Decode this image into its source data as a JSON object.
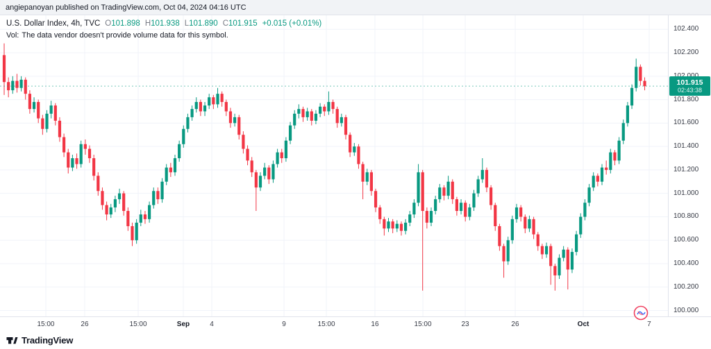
{
  "publish_bar": {
    "text": "angiepanoyan published on TradingView.com, Oct 04, 2024 04:16 UTC"
  },
  "header": {
    "symbol": "U.S. Dollar Index, 4h, TVC",
    "o_label": "O",
    "o_value": "101.898",
    "h_label": "H",
    "h_value": "101.938",
    "l_label": "L",
    "l_value": "101.890",
    "c_label": "C",
    "c_value": "101.915",
    "change": "+0.015 (+0.01%)",
    "vol_label": "Vol:",
    "vol_message": "The data vendor doesn't provide volume data for this symbol."
  },
  "price_badge": {
    "price": "101.915",
    "countdown": "02:43:38"
  },
  "colors": {
    "up": "#089981",
    "down": "#f23645",
    "grid": "#f0f3fa",
    "badge": "#089981",
    "axis_text": "#363a45"
  },
  "y_axis": {
    "labels": [
      "102.400",
      "102.200",
      "102.000",
      "101.800",
      "101.600",
      "101.400",
      "101.200",
      "101.000",
      "100.800",
      "100.600",
      "100.400",
      "100.200",
      "100.000"
    ]
  },
  "x_axis": {
    "labels": [
      {
        "text": "15:00",
        "pos": 0.0686,
        "bold": false
      },
      {
        "text": "26",
        "pos": 0.1268,
        "bold": false
      },
      {
        "text": "15:00",
        "pos": 0.2069,
        "bold": false
      },
      {
        "text": "Sep",
        "pos": 0.2744,
        "bold": true
      },
      {
        "text": "4",
        "pos": 0.3171,
        "bold": false
      },
      {
        "text": "9",
        "pos": 0.4252,
        "bold": false
      },
      {
        "text": "15:00",
        "pos": 0.4886,
        "bold": false
      },
      {
        "text": "16",
        "pos": 0.5613,
        "bold": false
      },
      {
        "text": "15:00",
        "pos": 0.6331,
        "bold": false
      },
      {
        "text": "23",
        "pos": 0.6965,
        "bold": false
      },
      {
        "text": "26",
        "pos": 0.7713,
        "bold": false
      },
      {
        "text": "Oct",
        "pos": 0.8732,
        "bold": true
      },
      {
        "text": "7",
        "pos": 0.9719,
        "bold": false
      }
    ]
  },
  "footer": {
    "brand": "TradingView"
  },
  "chart_data": {
    "type": "candlestick",
    "title": "U.S. Dollar Index",
    "timeframe": "4h",
    "exchange": "TVC",
    "last_price": 101.915,
    "ylim": [
      99.95,
      102.52
    ],
    "grid": true,
    "candles": [
      [
        102.18,
        102.28,
        101.84,
        101.95
      ],
      [
        101.95,
        101.99,
        101.82,
        101.88
      ],
      [
        101.88,
        102.0,
        101.85,
        101.96
      ],
      [
        101.96,
        102.02,
        101.86,
        101.9
      ],
      [
        101.9,
        102.0,
        101.87,
        101.97
      ],
      [
        101.97,
        101.99,
        101.8,
        101.85
      ],
      [
        101.85,
        101.88,
        101.68,
        101.72
      ],
      [
        101.72,
        101.82,
        101.69,
        101.78
      ],
      [
        101.78,
        101.8,
        101.6,
        101.64
      ],
      [
        101.64,
        101.67,
        101.5,
        101.55
      ],
      [
        101.55,
        101.71,
        101.52,
        101.68
      ],
      [
        101.68,
        101.79,
        101.64,
        101.75
      ],
      [
        101.75,
        101.77,
        101.58,
        101.62
      ],
      [
        101.62,
        101.65,
        101.44,
        101.48
      ],
      [
        101.48,
        101.51,
        101.31,
        101.35
      ],
      [
        101.35,
        101.38,
        101.17,
        101.22
      ],
      [
        101.22,
        101.33,
        101.19,
        101.3
      ],
      [
        101.3,
        101.34,
        101.21,
        101.25
      ],
      [
        101.25,
        101.45,
        101.22,
        101.42
      ],
      [
        101.42,
        101.46,
        101.33,
        101.38
      ],
      [
        101.38,
        101.41,
        101.26,
        101.3
      ],
      [
        101.3,
        101.33,
        101.11,
        101.15
      ],
      [
        101.15,
        101.18,
        100.98,
        101.02
      ],
      [
        101.02,
        101.05,
        100.86,
        100.9
      ],
      [
        100.9,
        100.93,
        100.77,
        100.82
      ],
      [
        100.82,
        100.91,
        100.79,
        100.88
      ],
      [
        100.88,
        100.98,
        100.84,
        100.95
      ],
      [
        100.95,
        101.04,
        100.91,
        101.0
      ],
      [
        101.0,
        101.02,
        100.81,
        100.85
      ],
      [
        100.85,
        100.88,
        100.68,
        100.72
      ],
      [
        100.72,
        100.75,
        100.55,
        100.6
      ],
      [
        100.6,
        100.78,
        100.57,
        100.75
      ],
      [
        100.75,
        100.86,
        100.72,
        100.82
      ],
      [
        100.82,
        100.85,
        100.74,
        100.78
      ],
      [
        100.78,
        100.93,
        100.75,
        100.9
      ],
      [
        100.9,
        101.05,
        100.87,
        101.02
      ],
      [
        101.02,
        101.05,
        100.91,
        100.95
      ],
      [
        100.95,
        101.13,
        100.92,
        101.1
      ],
      [
        101.1,
        101.25,
        101.07,
        101.22
      ],
      [
        101.22,
        101.26,
        101.14,
        101.18
      ],
      [
        101.18,
        101.33,
        101.15,
        101.3
      ],
      [
        101.3,
        101.45,
        101.27,
        101.42
      ],
      [
        101.42,
        101.58,
        101.39,
        101.55
      ],
      [
        101.55,
        101.68,
        101.52,
        101.65
      ],
      [
        101.65,
        101.75,
        101.62,
        101.72
      ],
      [
        101.72,
        101.82,
        101.69,
        101.78
      ],
      [
        101.78,
        101.8,
        101.66,
        101.7
      ],
      [
        101.7,
        101.78,
        101.66,
        101.75
      ],
      [
        101.75,
        101.85,
        101.72,
        101.82
      ],
      [
        101.82,
        101.84,
        101.72,
        101.76
      ],
      [
        101.76,
        101.9,
        101.73,
        101.85
      ],
      [
        101.85,
        101.87,
        101.74,
        101.78
      ],
      [
        101.78,
        101.8,
        101.66,
        101.7
      ],
      [
        101.7,
        101.73,
        101.56,
        101.6
      ],
      [
        101.6,
        101.68,
        101.57,
        101.65
      ],
      [
        101.65,
        101.67,
        101.46,
        101.5
      ],
      [
        101.5,
        101.53,
        101.34,
        101.38
      ],
      [
        101.38,
        101.41,
        101.24,
        101.28
      ],
      [
        101.28,
        101.31,
        101.14,
        101.18
      ],
      [
        101.18,
        101.2,
        100.85,
        101.05
      ],
      [
        101.05,
        101.18,
        101.02,
        101.15
      ],
      [
        101.15,
        101.26,
        101.12,
        101.22
      ],
      [
        101.22,
        101.24,
        101.08,
        101.12
      ],
      [
        101.12,
        101.28,
        101.09,
        101.25
      ],
      [
        101.25,
        101.38,
        101.22,
        101.35
      ],
      [
        101.35,
        101.38,
        101.26,
        101.3
      ],
      [
        101.3,
        101.48,
        101.27,
        101.45
      ],
      [
        101.45,
        101.61,
        101.42,
        101.58
      ],
      [
        101.58,
        101.71,
        101.55,
        101.68
      ],
      [
        101.68,
        101.76,
        101.64,
        101.72
      ],
      [
        101.72,
        101.74,
        101.61,
        101.65
      ],
      [
        101.65,
        101.73,
        101.62,
        101.7
      ],
      [
        101.7,
        101.72,
        101.58,
        101.62
      ],
      [
        101.62,
        101.71,
        101.59,
        101.68
      ],
      [
        101.68,
        101.77,
        101.65,
        101.74
      ],
      [
        101.74,
        101.76,
        101.66,
        101.7
      ],
      [
        101.7,
        101.87,
        101.67,
        101.78
      ],
      [
        101.78,
        101.8,
        101.68,
        101.72
      ],
      [
        101.72,
        101.74,
        101.56,
        101.6
      ],
      [
        101.6,
        101.68,
        101.57,
        101.65
      ],
      [
        101.65,
        101.67,
        101.46,
        101.5
      ],
      [
        101.5,
        101.52,
        101.31,
        101.35
      ],
      [
        101.35,
        101.43,
        101.32,
        101.4
      ],
      [
        101.4,
        101.42,
        101.21,
        101.25
      ],
      [
        101.25,
        101.27,
        100.95,
        101.1
      ],
      [
        101.1,
        101.21,
        101.07,
        101.18
      ],
      [
        101.18,
        101.2,
        100.98,
        101.02
      ],
      [
        101.02,
        101.04,
        100.84,
        100.88
      ],
      [
        100.88,
        100.9,
        100.74,
        100.78
      ],
      [
        100.78,
        100.8,
        100.64,
        100.7
      ],
      [
        100.7,
        100.79,
        100.67,
        100.76
      ],
      [
        100.76,
        100.78,
        100.66,
        100.7
      ],
      [
        100.7,
        100.77,
        100.67,
        100.74
      ],
      [
        100.74,
        100.76,
        100.64,
        100.68
      ],
      [
        100.68,
        100.78,
        100.65,
        100.75
      ],
      [
        100.75,
        100.85,
        100.72,
        100.82
      ],
      [
        100.82,
        100.95,
        100.79,
        100.92
      ],
      [
        100.92,
        101.25,
        100.89,
        101.18
      ],
      [
        101.18,
        101.2,
        100.17,
        100.85
      ],
      [
        100.85,
        100.88,
        100.7,
        100.75
      ],
      [
        100.75,
        100.88,
        100.72,
        100.85
      ],
      [
        100.85,
        100.98,
        100.82,
        100.95
      ],
      [
        100.95,
        101.08,
        100.92,
        101.05
      ],
      [
        101.05,
        101.07,
        100.94,
        100.98
      ],
      [
        100.98,
        101.15,
        100.95,
        101.1
      ],
      [
        101.1,
        101.12,
        100.91,
        100.95
      ],
      [
        100.95,
        100.97,
        100.81,
        100.85
      ],
      [
        100.85,
        100.95,
        100.82,
        100.92
      ],
      [
        100.92,
        100.94,
        100.76,
        100.8
      ],
      [
        100.8,
        100.91,
        100.77,
        100.88
      ],
      [
        100.88,
        101.03,
        100.85,
        101.0
      ],
      [
        101.0,
        101.15,
        100.97,
        101.12
      ],
      [
        101.12,
        101.3,
        101.09,
        101.2
      ],
      [
        101.2,
        101.22,
        101.01,
        101.05
      ],
      [
        101.05,
        101.07,
        100.86,
        100.9
      ],
      [
        100.9,
        100.92,
        100.68,
        100.72
      ],
      [
        100.72,
        100.74,
        100.51,
        100.55
      ],
      [
        100.55,
        100.57,
        100.28,
        100.42
      ],
      [
        100.42,
        100.63,
        100.39,
        100.6
      ],
      [
        100.6,
        100.81,
        100.57,
        100.78
      ],
      [
        100.78,
        100.91,
        100.75,
        100.88
      ],
      [
        100.88,
        100.9,
        100.76,
        100.8
      ],
      [
        100.8,
        100.82,
        100.66,
        100.7
      ],
      [
        100.7,
        100.81,
        100.67,
        100.78
      ],
      [
        100.78,
        100.8,
        100.61,
        100.65
      ],
      [
        100.65,
        100.67,
        100.51,
        100.55
      ],
      [
        100.55,
        100.57,
        100.44,
        100.48
      ],
      [
        100.48,
        100.58,
        100.45,
        100.55
      ],
      [
        100.55,
        100.57,
        100.22,
        100.38
      ],
      [
        100.38,
        100.4,
        100.17,
        100.3
      ],
      [
        100.3,
        100.48,
        100.27,
        100.45
      ],
      [
        100.45,
        100.55,
        100.42,
        100.52
      ],
      [
        100.52,
        100.54,
        100.18,
        100.35
      ],
      [
        100.35,
        100.53,
        100.32,
        100.5
      ],
      [
        100.5,
        100.68,
        100.47,
        100.65
      ],
      [
        100.65,
        100.83,
        100.62,
        100.8
      ],
      [
        100.8,
        100.95,
        100.77,
        100.92
      ],
      [
        100.92,
        101.08,
        100.89,
        101.05
      ],
      [
        101.05,
        101.18,
        101.02,
        101.15
      ],
      [
        101.15,
        101.17,
        101.06,
        101.1
      ],
      [
        101.1,
        101.25,
        101.07,
        101.22
      ],
      [
        101.22,
        101.28,
        101.16,
        101.2
      ],
      [
        101.2,
        101.38,
        101.17,
        101.35
      ],
      [
        101.35,
        101.37,
        101.24,
        101.28
      ],
      [
        101.28,
        101.48,
        101.25,
        101.45
      ],
      [
        101.45,
        101.63,
        101.42,
        101.6
      ],
      [
        101.6,
        101.78,
        101.57,
        101.75
      ],
      [
        101.75,
        101.93,
        101.72,
        101.9
      ],
      [
        101.9,
        102.15,
        101.87,
        102.08
      ],
      [
        102.08,
        102.1,
        101.92,
        101.96
      ],
      [
        101.96,
        101.99,
        101.88,
        101.915
      ]
    ]
  }
}
